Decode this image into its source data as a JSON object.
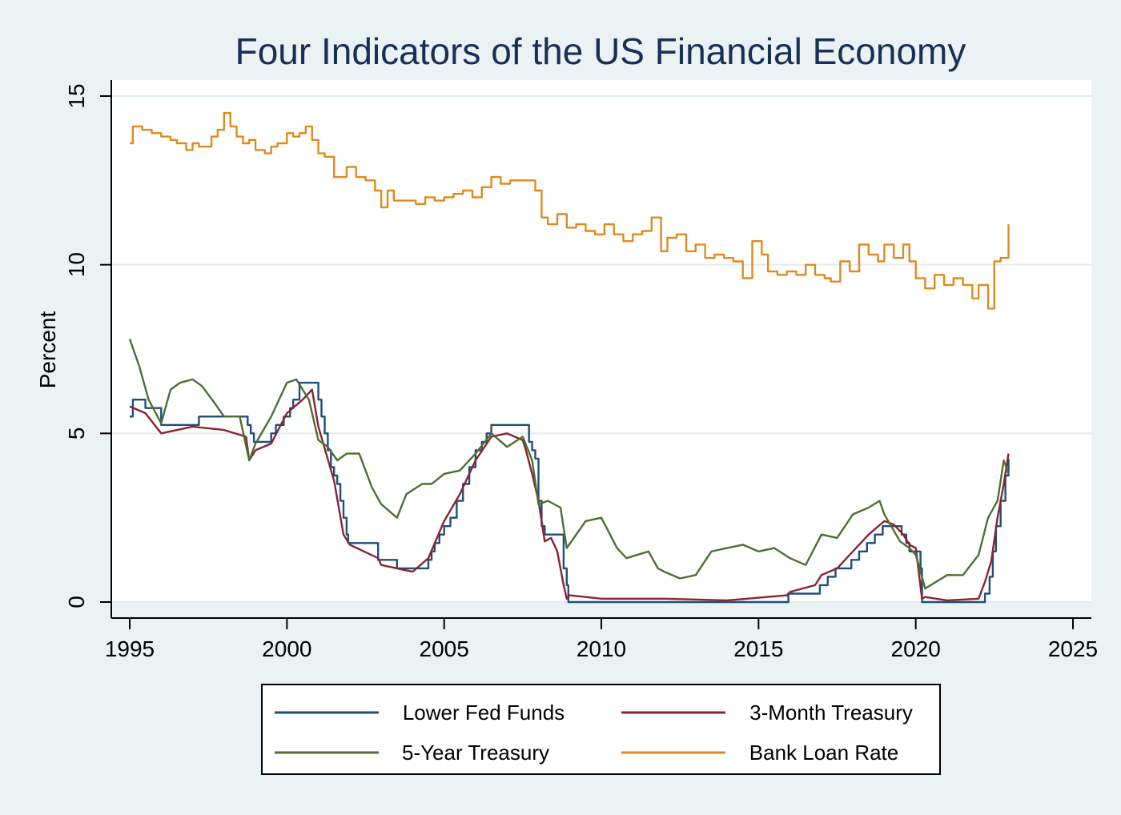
{
  "chart_data": {
    "type": "line",
    "title": "Four Indicators of the US Financial Economy",
    "xlabel": "",
    "ylabel": "Percent",
    "xlim": [
      1995,
      2025
    ],
    "ylim": [
      0,
      15
    ],
    "xticks": [
      1995,
      2000,
      2005,
      2010,
      2015,
      2020,
      2025
    ],
    "yticks": [
      0,
      5,
      10,
      15
    ],
    "grid": "horizontal",
    "legend_position": "bottom",
    "series": [
      {
        "name": "Lower Fed Funds",
        "color": "#1f4e79",
        "step": true,
        "x": [
          1995.0,
          1995.1,
          1995.5,
          1996.0,
          1997.2,
          1998.75,
          1998.85,
          1998.95,
          1999.5,
          1999.65,
          1999.9,
          2000.1,
          2000.2,
          2000.4,
          2001.0,
          2001.1,
          2001.2,
          2001.3,
          2001.4,
          2001.5,
          2001.6,
          2001.7,
          2001.8,
          2001.9,
          2001.95,
          2002.9,
          2003.5,
          2004.5,
          2004.6,
          2004.7,
          2004.85,
          2005.0,
          2005.2,
          2005.4,
          2005.6,
          2005.8,
          2006.0,
          2006.2,
          2006.35,
          2006.5,
          2007.7,
          2007.8,
          2007.9,
          2008.0,
          2008.1,
          2008.2,
          2008.3,
          2008.8,
          2008.9,
          2008.95,
          2015.95,
          2016.95,
          2017.2,
          2017.45,
          2017.95,
          2018.2,
          2018.45,
          2018.7,
          2018.95,
          2019.55,
          2019.7,
          2019.8,
          2020.15,
          2020.2,
          2022.2,
          2022.35,
          2022.45,
          2022.55,
          2022.7,
          2022.85,
          2022.95
        ],
        "values": [
          5.5,
          6.0,
          5.75,
          5.25,
          5.5,
          5.25,
          5.0,
          4.75,
          5.0,
          5.25,
          5.5,
          5.75,
          6.0,
          6.5,
          6.0,
          5.5,
          5.0,
          4.5,
          4.0,
          3.75,
          3.5,
          3.0,
          2.5,
          2.0,
          1.75,
          1.25,
          1.0,
          1.25,
          1.5,
          1.75,
          2.0,
          2.25,
          2.5,
          3.0,
          3.5,
          4.0,
          4.5,
          4.75,
          5.0,
          5.25,
          4.75,
          4.5,
          4.25,
          3.0,
          2.25,
          2.0,
          2.0,
          1.0,
          0.5,
          0.0,
          0.25,
          0.5,
          0.75,
          1.0,
          1.25,
          1.5,
          1.75,
          2.0,
          2.25,
          2.0,
          1.75,
          1.5,
          1.0,
          0.0,
          0.25,
          0.75,
          1.5,
          2.25,
          3.0,
          3.75,
          4.25
        ]
      },
      {
        "name": "3-Month Treasury",
        "color": "#8b2331",
        "step": false,
        "x": [
          1995.0,
          1995.5,
          1996.0,
          1997.0,
          1998.0,
          1998.7,
          1998.8,
          1999.0,
          1999.5,
          2000.0,
          2000.5,
          2000.8,
          2001.0,
          2001.5,
          2001.8,
          2002.0,
          2002.9,
          2003.0,
          2003.5,
          2004.0,
          2004.5,
          2005.0,
          2005.5,
          2006.0,
          2006.5,
          2007.0,
          2007.5,
          2007.6,
          2007.8,
          2008.0,
          2008.2,
          2008.4,
          2008.6,
          2008.8,
          2008.9,
          2009.0,
          2010.0,
          2012.0,
          2014.0,
          2015.9,
          2016.0,
          2016.8,
          2017.0,
          2017.5,
          2018.0,
          2018.5,
          2019.0,
          2019.3,
          2019.6,
          2019.8,
          2020.0,
          2020.2,
          2020.3,
          2021.0,
          2022.0,
          2022.2,
          2022.4,
          2022.6,
          2022.8,
          2022.95
        ],
        "values": [
          5.8,
          5.6,
          5.0,
          5.2,
          5.1,
          4.9,
          4.2,
          4.5,
          4.7,
          5.6,
          6.0,
          6.3,
          5.2,
          3.6,
          2.0,
          1.7,
          1.3,
          1.1,
          1.0,
          0.9,
          1.3,
          2.4,
          3.2,
          4.2,
          4.9,
          5.0,
          4.8,
          4.5,
          3.8,
          3.0,
          1.8,
          1.9,
          1.5,
          0.5,
          0.1,
          0.2,
          0.1,
          0.1,
          0.05,
          0.2,
          0.3,
          0.5,
          0.8,
          1.0,
          1.5,
          2.0,
          2.4,
          2.3,
          2.0,
          1.7,
          1.6,
          0.1,
          0.15,
          0.05,
          0.1,
          0.6,
          1.2,
          2.5,
          3.5,
          4.4
        ]
      },
      {
        "name": "5-Year Treasury",
        "color": "#4a7032",
        "step": false,
        "x": [
          1995.0,
          1995.3,
          1995.6,
          1996.0,
          1996.3,
          1996.6,
          1997.0,
          1997.3,
          1997.7,
          1998.0,
          1998.5,
          1998.8,
          1999.0,
          1999.5,
          2000.0,
          2000.3,
          2000.7,
          2001.0,
          2001.3,
          2001.6,
          2001.9,
          2002.3,
          2002.7,
          2003.0,
          2003.5,
          2003.8,
          2004.3,
          2004.6,
          2005.0,
          2005.5,
          2006.0,
          2006.5,
          2007.0,
          2007.5,
          2007.8,
          2008.0,
          2008.3,
          2008.7,
          2008.9,
          2009.5,
          2010.0,
          2010.5,
          2010.8,
          2011.5,
          2011.8,
          2012.0,
          2012.5,
          2013.0,
          2013.5,
          2014.0,
          2014.5,
          2015.0,
          2015.5,
          2016.0,
          2016.5,
          2017.0,
          2017.5,
          2018.0,
          2018.5,
          2018.85,
          2019.0,
          2019.5,
          2019.8,
          2020.0,
          2020.3,
          2021.0,
          2021.5,
          2022.0,
          2022.3,
          2022.6,
          2022.8,
          2022.95
        ],
        "values": [
          7.8,
          7.0,
          6.0,
          5.3,
          6.3,
          6.5,
          6.6,
          6.4,
          5.9,
          5.5,
          5.5,
          4.2,
          4.7,
          5.5,
          6.5,
          6.6,
          6.0,
          4.8,
          4.6,
          4.2,
          4.4,
          4.4,
          3.4,
          2.9,
          2.5,
          3.2,
          3.5,
          3.5,
          3.8,
          3.9,
          4.4,
          5.0,
          4.6,
          4.9,
          4.2,
          2.9,
          3.0,
          2.8,
          1.6,
          2.4,
          2.5,
          1.6,
          1.3,
          1.5,
          1.0,
          0.9,
          0.7,
          0.8,
          1.5,
          1.6,
          1.7,
          1.5,
          1.6,
          1.3,
          1.1,
          2.0,
          1.9,
          2.6,
          2.8,
          3.0,
          2.6,
          1.8,
          1.6,
          1.4,
          0.4,
          0.8,
          0.8,
          1.4,
          2.5,
          3.0,
          4.2,
          3.8
        ]
      },
      {
        "name": "Bank Loan Rate",
        "color": "#e08a1e",
        "step": true,
        "x": [
          1995.0,
          1995.1,
          1995.4,
          1995.7,
          1996.0,
          1996.3,
          1996.5,
          1996.8,
          1997.0,
          1997.2,
          1997.6,
          1997.8,
          1998.0,
          1998.2,
          1998.4,
          1998.6,
          1998.8,
          1999.0,
          1999.3,
          1999.5,
          1999.7,
          2000.0,
          2000.2,
          2000.4,
          2000.6,
          2000.8,
          2001.0,
          2001.2,
          2001.5,
          2001.9,
          2002.2,
          2002.5,
          2002.8,
          2003.0,
          2003.2,
          2003.4,
          2003.8,
          2004.1,
          2004.4,
          2004.7,
          2005.0,
          2005.3,
          2005.6,
          2005.9,
          2006.2,
          2006.5,
          2006.8,
          2007.1,
          2007.5,
          2007.9,
          2008.1,
          2008.3,
          2008.6,
          2008.9,
          2009.2,
          2009.5,
          2009.8,
          2010.1,
          2010.4,
          2010.7,
          2011.0,
          2011.3,
          2011.6,
          2011.9,
          2012.1,
          2012.4,
          2012.7,
          2013.0,
          2013.3,
          2013.6,
          2013.9,
          2014.2,
          2014.5,
          2014.8,
          2015.1,
          2015.3,
          2015.6,
          2015.9,
          2016.2,
          2016.5,
          2016.8,
          2017.1,
          2017.3,
          2017.6,
          2017.9,
          2018.2,
          2018.5,
          2018.8,
          2019.0,
          2019.3,
          2019.6,
          2019.8,
          2020.0,
          2020.3,
          2020.6,
          2020.9,
          2021.2,
          2021.5,
          2021.8,
          2022.0,
          2022.3,
          2022.5,
          2022.7,
          2022.95
        ],
        "values": [
          13.6,
          14.1,
          14.0,
          13.9,
          13.8,
          13.7,
          13.6,
          13.4,
          13.6,
          13.5,
          13.8,
          14.0,
          14.5,
          14.1,
          13.8,
          13.6,
          13.7,
          13.4,
          13.3,
          13.5,
          13.6,
          13.9,
          13.8,
          13.9,
          14.1,
          13.7,
          13.3,
          13.2,
          12.6,
          12.9,
          12.6,
          12.5,
          12.2,
          11.7,
          12.2,
          11.9,
          11.9,
          11.8,
          12.0,
          11.9,
          12.0,
          12.1,
          12.2,
          12.0,
          12.3,
          12.6,
          12.4,
          12.5,
          12.5,
          12.2,
          11.4,
          11.2,
          11.5,
          11.1,
          11.2,
          11.0,
          10.9,
          11.2,
          10.9,
          10.7,
          10.9,
          11.0,
          11.4,
          10.4,
          10.8,
          10.9,
          10.4,
          10.6,
          10.2,
          10.3,
          10.2,
          10.1,
          9.6,
          10.7,
          10.3,
          9.8,
          9.7,
          9.8,
          9.7,
          10.0,
          9.7,
          9.6,
          9.5,
          10.1,
          9.8,
          10.6,
          10.3,
          10.1,
          10.6,
          10.2,
          10.6,
          10.1,
          9.6,
          9.3,
          9.7,
          9.4,
          9.6,
          9.4,
          9.0,
          9.4,
          8.7,
          10.1,
          10.2,
          11.2
        ]
      }
    ]
  }
}
